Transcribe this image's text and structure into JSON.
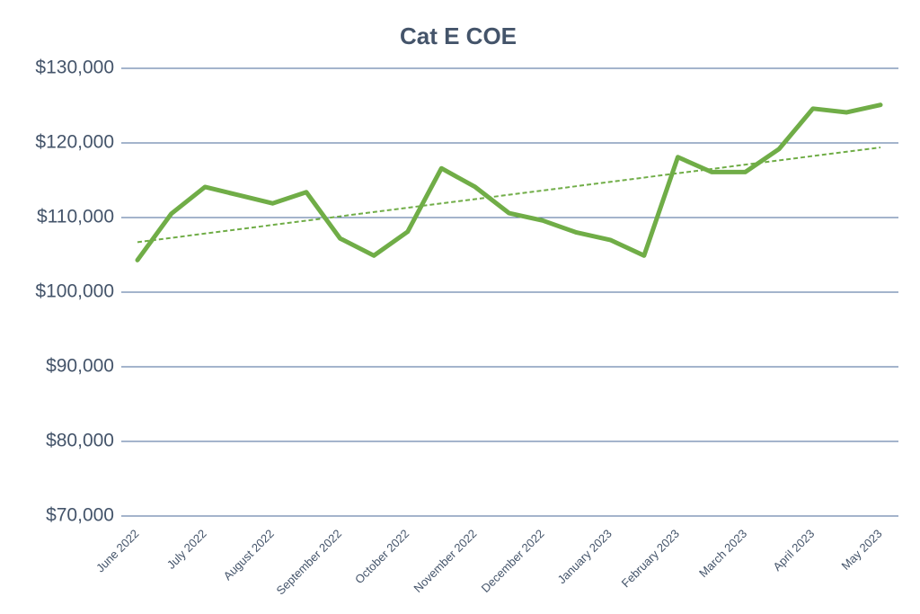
{
  "chart_data": {
    "type": "line",
    "title": "Cat E COE",
    "categories": [
      "June 2022",
      null,
      "July 2022",
      null,
      "August 2022",
      null,
      "September 2022",
      null,
      "October 2022",
      null,
      "November 2022",
      null,
      "December 2022",
      null,
      "January 2023",
      null,
      "February 2023",
      null,
      "March 2023",
      null,
      "April 2023",
      null,
      "May 2023"
    ],
    "series": [
      {
        "color": "#70ad47",
        "values": [
          104300,
          110500,
          114100,
          113000,
          111900,
          113400,
          107200,
          104900,
          108100,
          116600,
          114100,
          110600,
          109600,
          108000,
          107000,
          104900,
          118100,
          116100,
          116100,
          119200,
          124600,
          124100,
          125100
        ]
      }
    ],
    "trendline": {
      "color": "#70ad47",
      "style": "dashed",
      "values": [
        106700,
        119400
      ]
    },
    "ylim": [
      70000,
      130000
    ],
    "yticks": [
      {
        "value": 70000,
        "label": "$70,000"
      },
      {
        "value": 80000,
        "label": "$80,000"
      },
      {
        "value": 90000,
        "label": "$90,000"
      },
      {
        "value": 100000,
        "label": "$100,000"
      },
      {
        "value": 110000,
        "label": "$110,000"
      },
      {
        "value": 120000,
        "label": "$120,000"
      },
      {
        "value": 130000,
        "label": "$130,000"
      }
    ],
    "grid": true
  }
}
